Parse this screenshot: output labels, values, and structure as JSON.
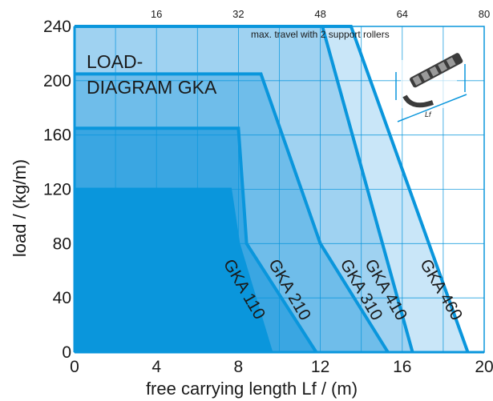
{
  "chart_data": {
    "type": "area",
    "title": "LOAD-\nDIAGRAM GKA",
    "xlabel": "free carrying length Lf / (m)",
    "ylabel": "load / (kg/m)",
    "xlim": [
      0,
      20
    ],
    "ylim": [
      0,
      240
    ],
    "x_ticks": [
      "0",
      "4",
      "8",
      "12",
      "16",
      "20"
    ],
    "y_ticks": [
      "0",
      "40",
      "80",
      "120",
      "160",
      "200",
      "240"
    ],
    "top_ticks": [
      "16",
      "32",
      "48",
      "64",
      "80"
    ],
    "grid": true,
    "annotation": "max. travel with 2 support rollers",
    "inset_label": "Lf",
    "series": [
      {
        "name": "GKA 110",
        "points": [
          [
            0,
            120
          ],
          [
            7.6,
            120
          ],
          [
            8.0,
            80
          ],
          [
            9.6,
            0
          ]
        ],
        "color": "#0a96dc"
      },
      {
        "name": "GKA 210",
        "points": [
          [
            0,
            165
          ],
          [
            8.0,
            165
          ],
          [
            8.4,
            80
          ],
          [
            11.8,
            0
          ]
        ],
        "color": "#3aa6e2"
      },
      {
        "name": "GKA 310",
        "points": [
          [
            0,
            205
          ],
          [
            9.1,
            205
          ],
          [
            12.0,
            80
          ],
          [
            15.3,
            0
          ]
        ],
        "color": "#6fbdea"
      },
      {
        "name": "GKA 410",
        "points": [
          [
            0,
            240
          ],
          [
            12.1,
            240
          ],
          [
            16.5,
            0
          ]
        ],
        "color": "#9fd2f1"
      },
      {
        "name": "GKA 460",
        "points": [
          [
            0,
            240
          ],
          [
            13.5,
            240
          ],
          [
            19.2,
            0
          ]
        ],
        "color": "#c9e6f8"
      }
    ],
    "base_area_color": "#0a96dc",
    "line_color": "#0a96dc"
  }
}
